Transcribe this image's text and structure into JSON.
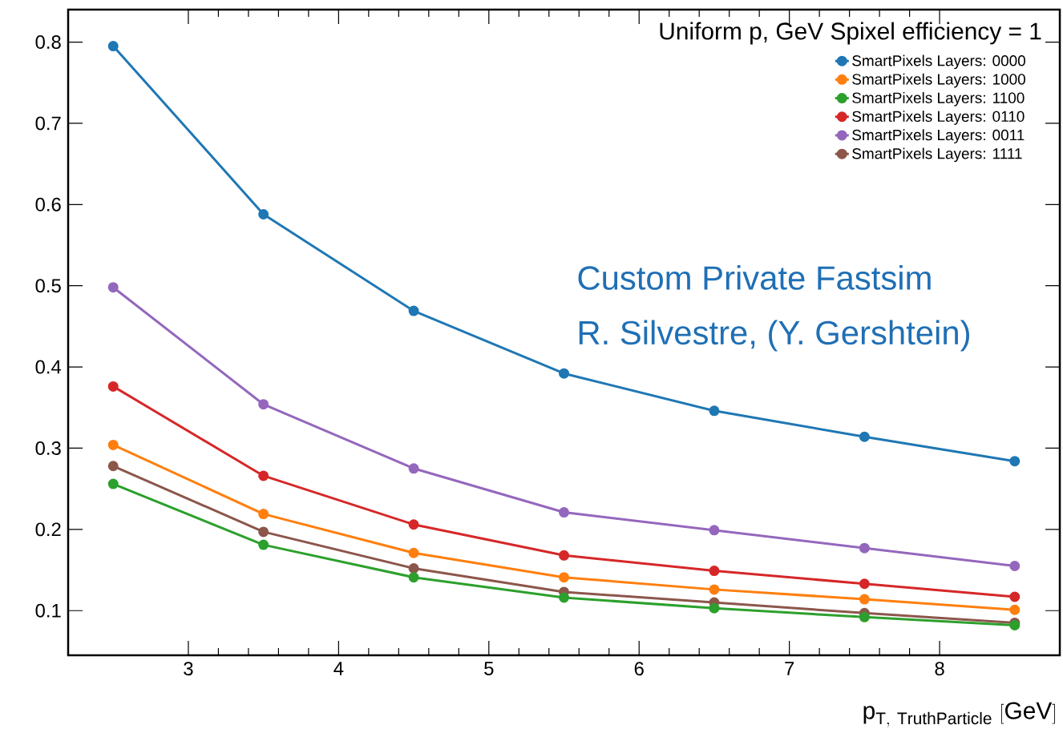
{
  "chart_data": {
    "type": "line",
    "title": "Uniform p, GeV Spixel efficiency = 1",
    "xlabel": "\\mathrm{p}_{\\mathrm{T,\\ TruthParticle}}\\ \\mathrm{[GeV]}",
    "annotations": [
      "Custom Private Fastsim",
      "R. Silvestre, (Y. Gershtein)"
    ],
    "x": [
      2.5,
      3.5,
      4.5,
      5.5,
      6.5,
      7.5,
      8.5
    ],
    "series": [
      {
        "name": "SmartPixels Layers: 0000",
        "color": "#1f77b4",
        "values": [
          0.795,
          0.588,
          0.469,
          0.392,
          0.346,
          0.314,
          0.284
        ]
      },
      {
        "name": "SmartPixels Layers: 1000",
        "color": "#ff7f0e",
        "values": [
          0.304,
          0.219,
          0.171,
          0.141,
          0.126,
          0.114,
          0.101
        ]
      },
      {
        "name": "SmartPixels Layers: 1100",
        "color": "#2ca02c",
        "values": [
          0.256,
          0.181,
          0.141,
          0.116,
          0.103,
          0.092,
          0.082
        ]
      },
      {
        "name": "SmartPixels Layers: 0110",
        "color": "#d62728",
        "values": [
          0.376,
          0.266,
          0.206,
          0.168,
          0.149,
          0.133,
          0.117
        ]
      },
      {
        "name": "SmartPixels Layers: 0011",
        "color": "#9467bd",
        "values": [
          0.498,
          0.354,
          0.275,
          0.221,
          0.199,
          0.177,
          0.155
        ]
      },
      {
        "name": "SmartPixels Layers: 1111",
        "color": "#8c564b",
        "values": [
          0.278,
          0.197,
          0.152,
          0.123,
          0.11,
          0.097,
          0.085
        ]
      }
    ],
    "xlim": [
      2.2,
      8.8
    ],
    "ylim": [
      0.045,
      0.84
    ],
    "xticks": [
      3,
      4,
      5,
      6,
      7,
      8
    ],
    "yticks": [
      0.1,
      0.2,
      0.3,
      0.4,
      0.5,
      0.6,
      0.7,
      0.8
    ],
    "legend": "top right",
    "marker": "circle",
    "line_style": "solid"
  }
}
